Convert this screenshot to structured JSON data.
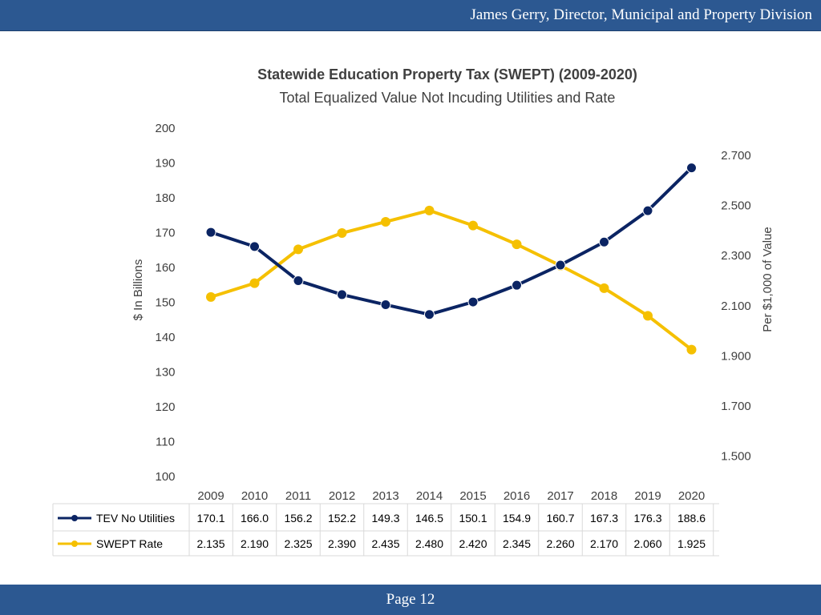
{
  "header": {
    "text": "James Gerry, Director, Municipal and Property Division"
  },
  "footer": {
    "page_label": "Page 12"
  },
  "chart_data": {
    "type": "line",
    "title": "Statewide Education Property Tax (SWEPT) (2009-2020)",
    "subtitle": "Total Equalized Value Not Incuding Utilities and Rate",
    "ylabel": "$ In Billions",
    "y2label": "Per $1,000 of Value",
    "categories": [
      "2009",
      "2010",
      "2011",
      "2012",
      "2013",
      "2014",
      "2015",
      "2016",
      "2017",
      "2018",
      "2019",
      "2020"
    ],
    "ylim": [
      100,
      200
    ],
    "yticks": [
      "200",
      "190",
      "180",
      "170",
      "160",
      "150",
      "140",
      "130",
      "120",
      "110",
      "100"
    ],
    "y2lim": [
      1.4,
      2.7
    ],
    "y2ticks": [
      "2.700",
      "2.500",
      "2.300",
      "2.100",
      "1.900",
      "1.700",
      "1.500"
    ],
    "grid": false,
    "legend": "data-table",
    "series": [
      {
        "name": "TEV No Utilities",
        "axis": "left",
        "color": "#0b2463",
        "values": [
          170.1,
          166.0,
          156.2,
          152.2,
          149.3,
          146.5,
          150.1,
          154.9,
          160.7,
          167.3,
          176.3,
          188.6
        ],
        "labels": [
          "170.1",
          "166.0",
          "156.2",
          "152.2",
          "149.3",
          "146.5",
          "150.1",
          "154.9",
          "160.7",
          "167.3",
          "176.3",
          "188.6"
        ]
      },
      {
        "name": "SWEPT Rate",
        "axis": "right",
        "color": "#f5c000",
        "values": [
          2.135,
          2.19,
          2.325,
          2.39,
          2.435,
          2.48,
          2.42,
          2.345,
          2.26,
          2.17,
          2.06,
          1.925
        ],
        "labels": [
          "2.135",
          "2.190",
          "2.325",
          "2.390",
          "2.435",
          "2.480",
          "2.420",
          "2.345",
          "2.260",
          "2.170",
          "2.060",
          "1.925"
        ]
      }
    ]
  }
}
